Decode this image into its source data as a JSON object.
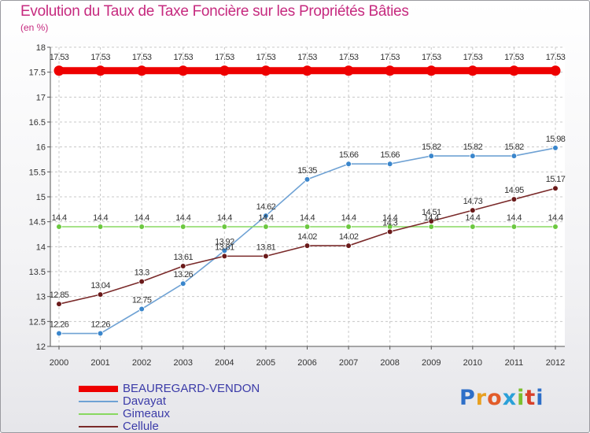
{
  "title": "Evolution du Taux de Taxe Foncière sur les Propriétés Bâties",
  "subtitle": "(en %)",
  "logo": {
    "text": "Proxiti",
    "letter_colors": [
      "#2e6fc8",
      "#e8a020",
      "#e25c2a",
      "#2aa0d8",
      "#7cbf2e",
      "#d8402a",
      "#2e6fc8"
    ]
  },
  "chart_data": {
    "type": "line",
    "x": [
      "2000",
      "2001",
      "2002",
      "2003",
      "2004",
      "2005",
      "2006",
      "2007",
      "2008",
      "2009",
      "2010",
      "2011",
      "2012"
    ],
    "ylim": [
      12,
      18
    ],
    "yticks": [
      "12",
      "12.5",
      "13",
      "13.5",
      "14",
      "14.5",
      "15",
      "15.5",
      "16",
      "16.5",
      "17",
      "17.5",
      "18"
    ],
    "grid": true,
    "legend_position": "bottom-left",
    "series": [
      {
        "name": "BEAUREGARD-VENDON",
        "color": "#ee0000",
        "marker": "#ee0000",
        "thick": true,
        "values": [
          17.53,
          17.53,
          17.53,
          17.53,
          17.53,
          17.53,
          17.53,
          17.53,
          17.53,
          17.53,
          17.53,
          17.53,
          17.53
        ],
        "labels": [
          "17.53",
          "17.53",
          "17.53",
          "17.53",
          "17.53",
          "17.53",
          "17.53",
          "17.53",
          "17.53",
          "17.53",
          "17.53",
          "17.53",
          "17.53"
        ]
      },
      {
        "name": "Davayat",
        "color": "#6fa2d4",
        "marker": "#3a86cc",
        "thick": false,
        "values": [
          12.26,
          12.26,
          12.75,
          13.26,
          13.92,
          14.62,
          15.35,
          15.66,
          15.66,
          15.82,
          15.82,
          15.82,
          15.98
        ],
        "labels": [
          "12.26",
          "12.26",
          "12.75",
          "13.26",
          "13.92",
          "14.62",
          "15.35",
          "15.66",
          "15.66",
          "15.82",
          "15.82",
          "15.82",
          "15.98"
        ]
      },
      {
        "name": "Gimeaux",
        "color": "#88d860",
        "marker": "#6cc840",
        "thick": false,
        "values": [
          14.4,
          14.4,
          14.4,
          14.4,
          14.4,
          14.4,
          14.4,
          14.4,
          14.4,
          14.4,
          14.4,
          14.4,
          14.4
        ],
        "labels": [
          "14.4",
          "14.4",
          "14.4",
          "14.4",
          "14.4",
          "14.4",
          "14.4",
          "14.4",
          "14.4",
          "14.4",
          "14.4",
          "14.4",
          "14.4"
        ]
      },
      {
        "name": "Cellule",
        "color": "#7a2a2a",
        "marker": "#6a1a1a",
        "thick": false,
        "values": [
          12.85,
          13.04,
          13.3,
          13.61,
          13.81,
          13.81,
          14.02,
          14.02,
          14.3,
          14.51,
          14.73,
          14.95,
          15.17
        ],
        "labels": [
          "12.85",
          "13.04",
          "13.3",
          "13.61",
          "13.81",
          "13.81",
          "14.02",
          "14.02",
          "14.3",
          "14.51",
          "14.73",
          "14.95",
          "15.17"
        ]
      }
    ]
  }
}
